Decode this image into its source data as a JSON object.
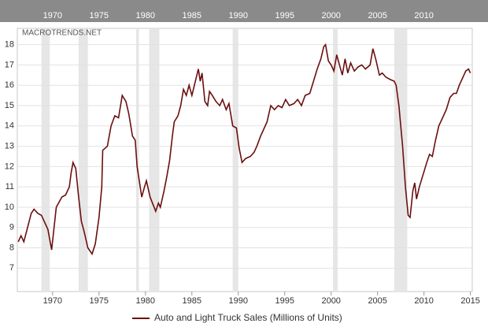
{
  "chart_data": {
    "type": "line",
    "watermark": "MACROTRENDS.NET",
    "navigator_labels": [
      "1970",
      "1975",
      "1980",
      "1985",
      "1990",
      "1995",
      "2000",
      "2005",
      "2010"
    ],
    "xlim": [
      1966.2,
      2015.2
    ],
    "xticks": [
      1970,
      1975,
      1980,
      1985,
      1990,
      1995,
      2000,
      2005,
      2010,
      2015
    ],
    "ylim": [
      5.85,
      18.8
    ],
    "yticks": [
      7,
      8,
      9,
      10,
      11,
      12,
      13,
      14,
      15,
      16,
      17,
      18
    ],
    "grid": true,
    "recessions": [
      [
        1968.8,
        1969.7
      ],
      [
        1972.8,
        1973.8
      ],
      [
        1979.0,
        1979.3
      ],
      [
        1980.4,
        1981.5
      ],
      [
        1989.4,
        1990.0
      ],
      [
        2000.2,
        2000.7
      ],
      [
        2006.8,
        2008.2
      ]
    ],
    "x": [
      1966.3,
      1966.6,
      1966.9,
      1967.3,
      1967.7,
      1968.0,
      1968.4,
      1968.8,
      1969.2,
      1969.5,
      1969.9,
      1970.4,
      1971.0,
      1971.4,
      1971.8,
      1972.0,
      1972.2,
      1972.5,
      1972.8,
      1973.1,
      1973.4,
      1973.8,
      1974.25,
      1974.6,
      1975.0,
      1975.3,
      1975.4,
      1975.9,
      1976.3,
      1976.7,
      1977.1,
      1977.5,
      1977.9,
      1978.2,
      1978.6,
      1978.9,
      1979.1,
      1979.6,
      1979.9,
      1980.1,
      1980.5,
      1981.1,
      1981.4,
      1981.6,
      1982.0,
      1982.3,
      1982.6,
      1982.9,
      1983.1,
      1983.5,
      1983.8,
      1984.1,
      1984.4,
      1984.7,
      1985.0,
      1985.7,
      1985.9,
      1986.1,
      1986.4,
      1986.7,
      1986.9,
      1987.2,
      1987.6,
      1988.0,
      1988.3,
      1988.7,
      1989.0,
      1989.4,
      1989.8,
      1990.1,
      1990.4,
      1990.8,
      1991.3,
      1991.7,
      1992.0,
      1992.4,
      1992.7,
      1993.1,
      1993.5,
      1993.9,
      1994.3,
      1994.7,
      1995.1,
      1995.5,
      1996.0,
      1996.4,
      1996.8,
      1997.2,
      1997.7,
      1998.1,
      1998.5,
      1998.9,
      1999.2,
      1999.4,
      1999.7,
      2000.0,
      2000.3,
      2000.6,
      2000.9,
      2001.2,
      2001.5,
      2001.8,
      2002.1,
      2002.5,
      2002.9,
      2003.3,
      2003.7,
      2004.2,
      2004.5,
      2004.8,
      2005.2,
      2005.5,
      2005.9,
      2006.3,
      2006.8,
      2007.0,
      2007.3,
      2007.7,
      2008.0,
      2008.3,
      2008.5,
      2008.8,
      2009.0,
      2009.2,
      2009.5,
      2009.9,
      2010.3,
      2010.6,
      2010.9,
      2011.2,
      2011.6,
      2012.0,
      2012.4,
      2012.8,
      2013.2,
      2013.5,
      2013.8,
      2014.2,
      2014.5,
      2014.8,
      2015.0
    ],
    "series": [
      {
        "name": "Auto and Light Truck Sales (Millions of Units)",
        "color": "#6b0f0f",
        "values": [
          8.3,
          8.6,
          8.3,
          9.0,
          9.7,
          9.9,
          9.7,
          9.6,
          9.2,
          8.9,
          7.9,
          10.0,
          10.5,
          10.6,
          11.0,
          11.7,
          12.2,
          11.9,
          10.5,
          9.3,
          8.8,
          8.0,
          7.7,
          8.2,
          9.5,
          11.0,
          12.8,
          13.0,
          14.0,
          14.5,
          14.4,
          15.5,
          15.2,
          14.6,
          13.5,
          13.3,
          12.0,
          10.5,
          11.0,
          11.3,
          10.5,
          9.8,
          10.2,
          10.0,
          10.8,
          11.5,
          12.3,
          13.5,
          14.2,
          14.5,
          15.0,
          15.8,
          15.5,
          16.0,
          15.5,
          16.8,
          16.2,
          16.6,
          15.2,
          15.0,
          15.7,
          15.5,
          15.2,
          15.0,
          15.3,
          14.8,
          15.1,
          14.0,
          13.9,
          12.9,
          12.2,
          12.4,
          12.5,
          12.7,
          13.0,
          13.5,
          13.8,
          14.2,
          15.0,
          14.8,
          15.0,
          14.9,
          15.3,
          15.0,
          15.1,
          15.3,
          15.0,
          15.5,
          15.6,
          16.2,
          16.8,
          17.3,
          17.9,
          18.0,
          17.2,
          17.0,
          16.7,
          17.5,
          17.0,
          16.5,
          17.3,
          16.6,
          17.1,
          16.7,
          16.9,
          17.0,
          16.8,
          17.0,
          17.8,
          17.3,
          16.5,
          16.6,
          16.4,
          16.3,
          16.2,
          16.0,
          15.0,
          13.0,
          11.0,
          9.6,
          9.5,
          10.8,
          11.2,
          10.4,
          11.0,
          11.6,
          12.2,
          12.6,
          12.5,
          13.2,
          14.0,
          14.4,
          14.8,
          15.4,
          15.6,
          15.6,
          16.0,
          16.4,
          16.7,
          16.8,
          16.6
        ]
      }
    ]
  }
}
